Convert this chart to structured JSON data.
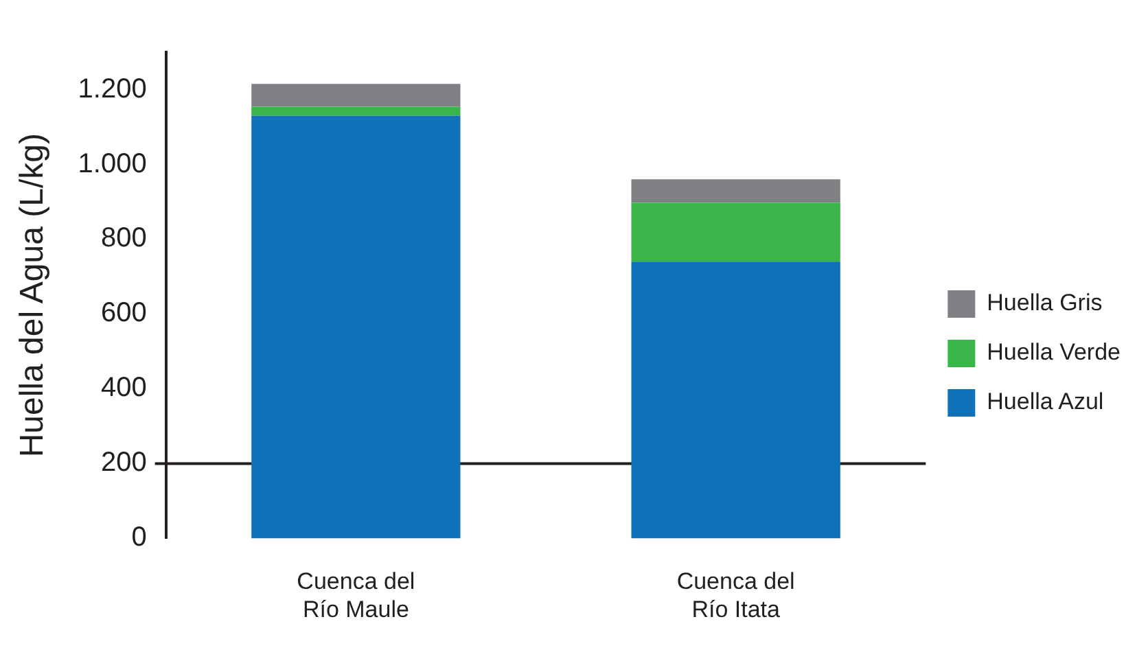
{
  "chart_data": {
    "type": "bar",
    "stacked": true,
    "ylabel": "Huella del Agua (L/kg)",
    "categories": [
      "Cuenca del Río Maule",
      "Cuenca del Río Itata"
    ],
    "series": [
      {
        "name": "Huella Azul",
        "color": "#0f72b9",
        "values": [
          1130,
          740
        ]
      },
      {
        "name": "Huella Verde",
        "color": "#3ab54a",
        "values": [
          24,
          157
        ]
      },
      {
        "name": "Huella Gris",
        "color": "#808184",
        "values": [
          61,
          63
        ]
      }
    ],
    "ylim": [
      0,
      1300
    ],
    "yticks": [
      0,
      200,
      400,
      600,
      800,
      {
        "value": 1000,
        "label": "1.000"
      },
      {
        "value": 1200,
        "label": "1.200"
      }
    ],
    "ref_lines": [
      {
        "axis": "y",
        "value": 200,
        "color": "#231f20"
      }
    ],
    "grid": false,
    "legend": "right"
  }
}
